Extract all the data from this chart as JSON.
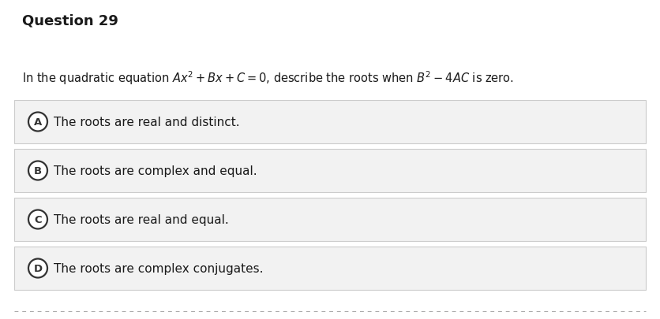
{
  "title": "Question 29",
  "options": [
    {
      "label": "A",
      "text": "The roots are real and distinct."
    },
    {
      "label": "B",
      "text": "The roots are complex and equal."
    },
    {
      "label": "C",
      "text": "The roots are real and equal."
    },
    {
      "label": "D",
      "text": "The roots are complex conjugates."
    }
  ],
  "bg_color": "#ffffff",
  "option_bg_color": "#f2f2f2",
  "option_border_color": "#cccccc",
  "title_color": "#1a1a1a",
  "text_color": "#1a1a1a",
  "circle_color": "#333333",
  "bottom_border_color": "#aaaaaa",
  "title_fontsize": 13,
  "question_fontsize": 10.5,
  "option_fontsize": 11,
  "fig_width": 8.36,
  "fig_height": 4.06,
  "dpi": 100
}
